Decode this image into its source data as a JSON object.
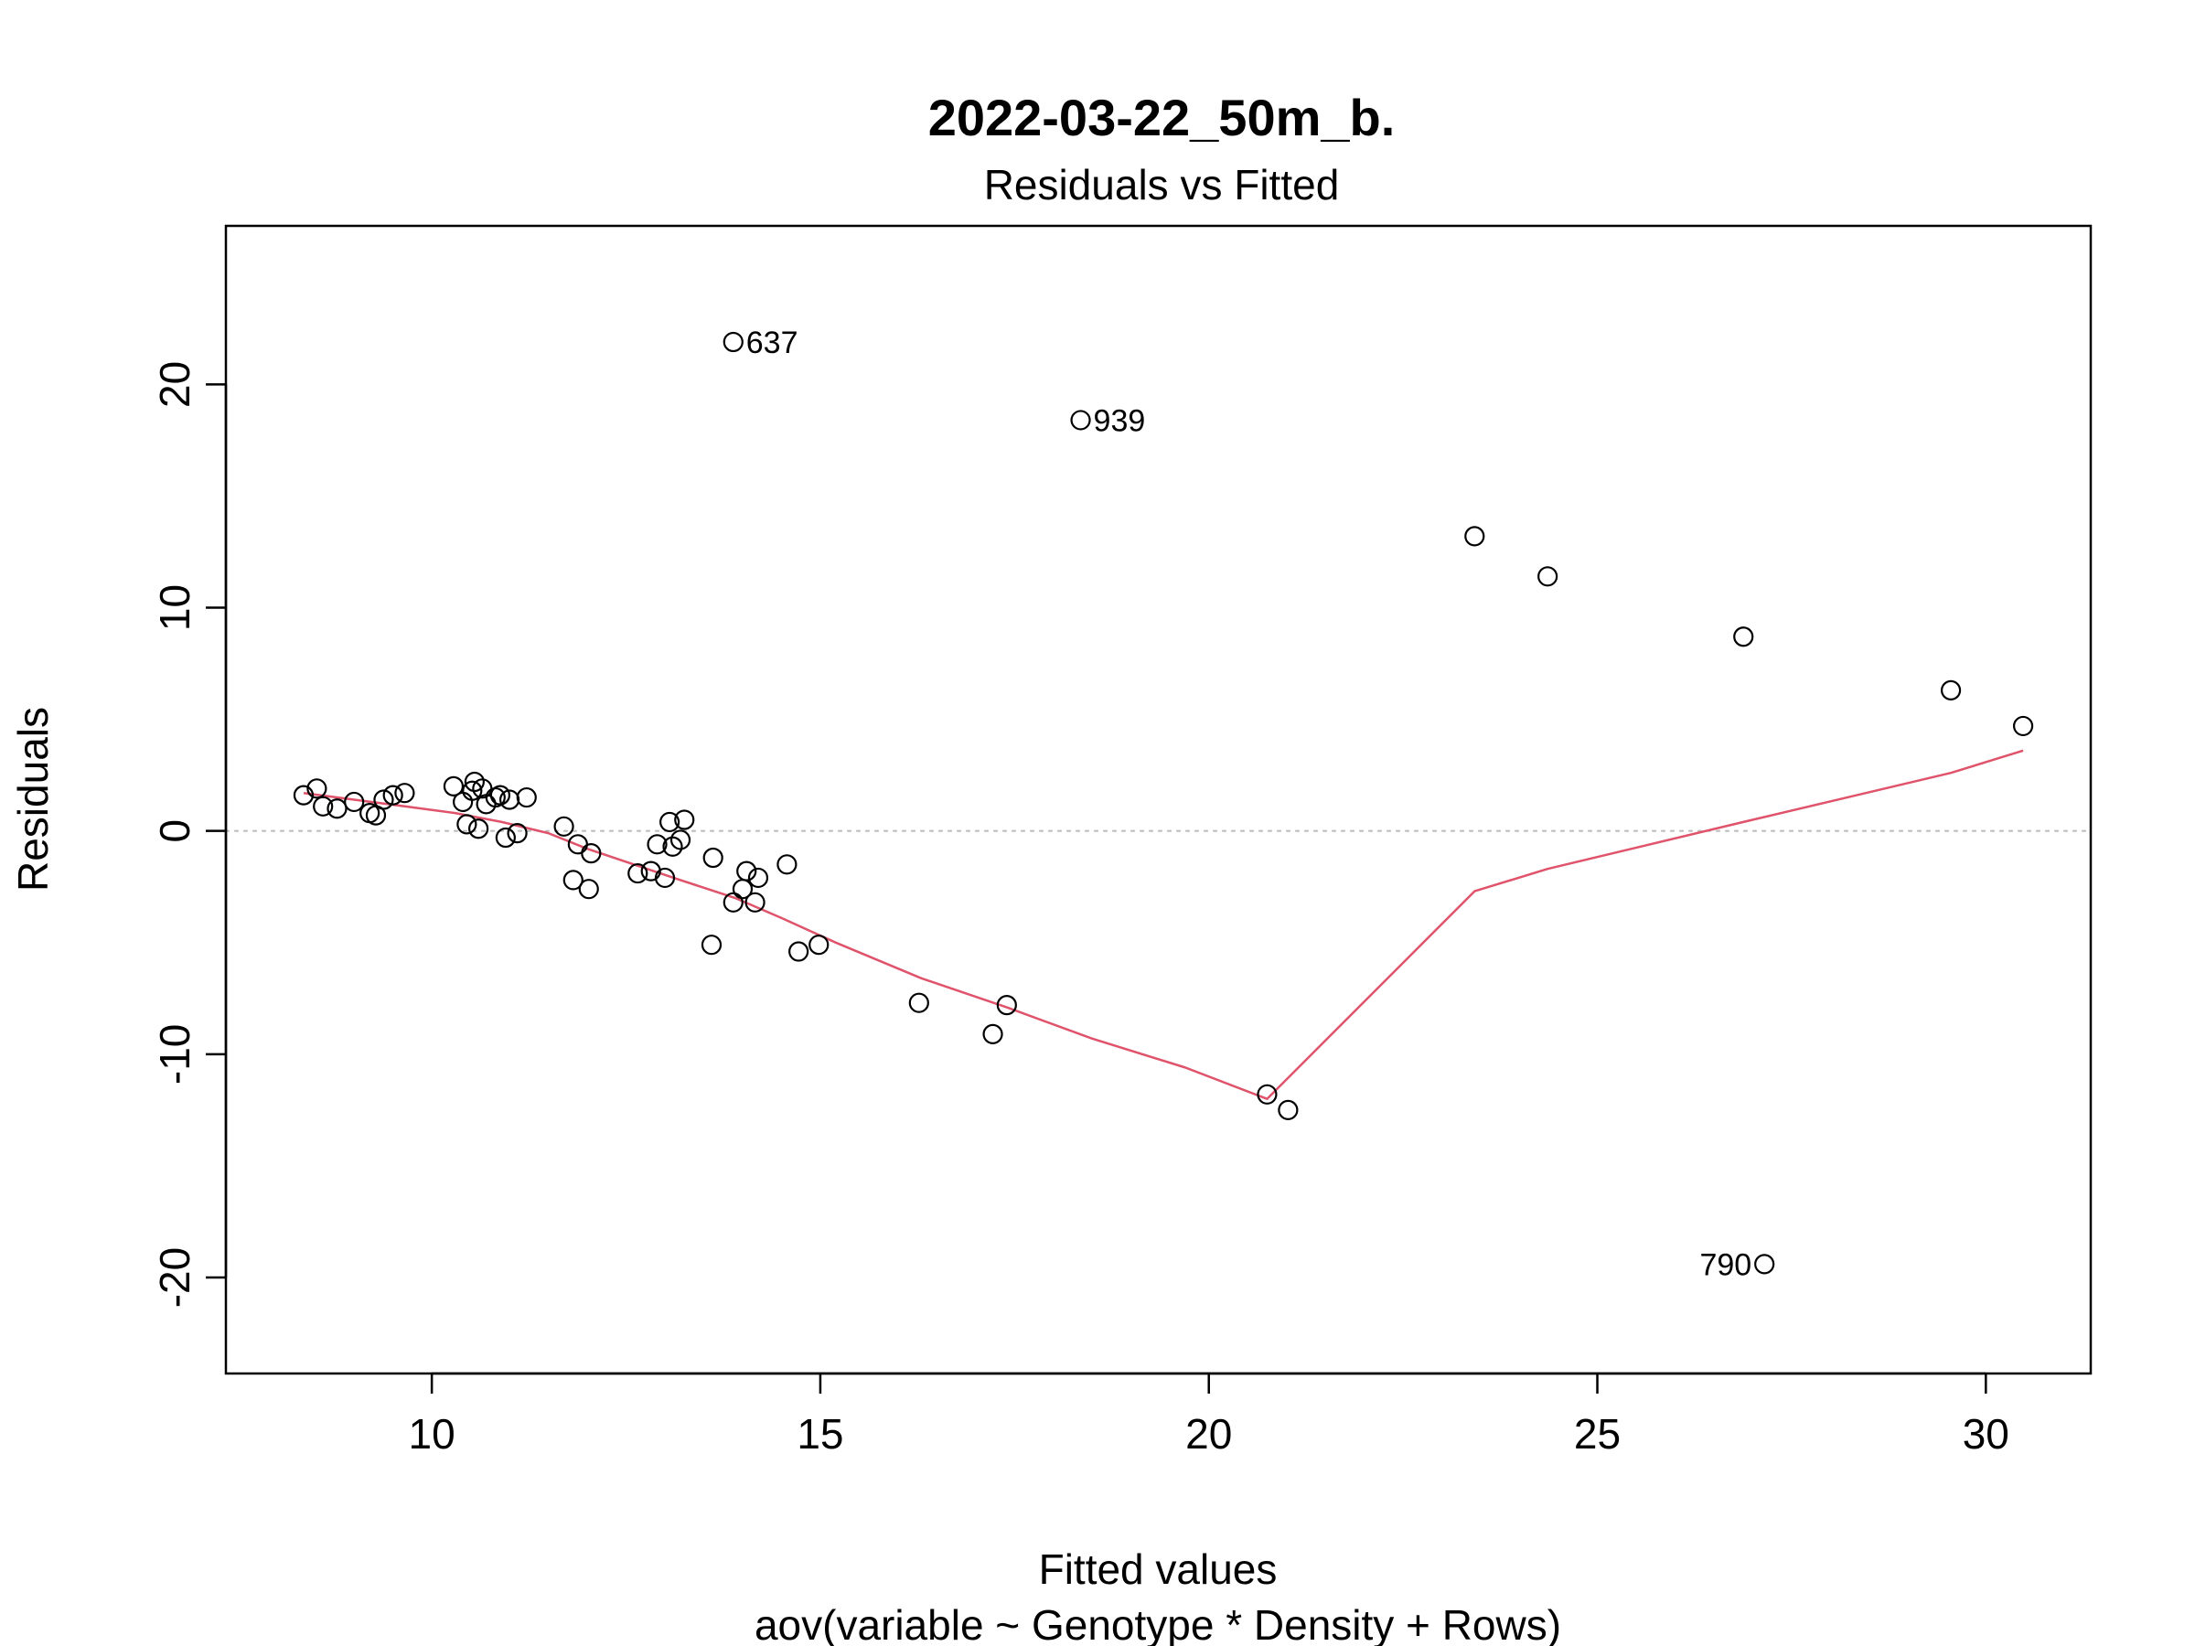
{
  "chart_data": {
    "type": "scatter",
    "title": "2022-03-22_50m_b.",
    "subtitle": "Residuals vs Fitted",
    "xlabel": "Fitted values",
    "xlabel2": "aov(variable ~ Genotype * Density + Rows)",
    "ylabel": "Residuals",
    "xlim": [
      7.35,
      31.35
    ],
    "ylim": [
      -24.3,
      27.1
    ],
    "x_ticks": [
      10,
      15,
      20,
      25,
      30
    ],
    "x_tick_labels": [
      "10",
      "15",
      "20",
      "25",
      "30"
    ],
    "y_ticks": [
      -20,
      -10,
      0,
      10,
      20
    ],
    "y_tick_labels": [
      "-20",
      "-10",
      "0",
      "10",
      "20"
    ],
    "reference_line": {
      "y": 0,
      "color": "#bebebe",
      "style": "dotted"
    },
    "grid": false,
    "points": [
      {
        "x": 8.35,
        "y": 1.6
      },
      {
        "x": 8.52,
        "y": 1.9
      },
      {
        "x": 8.6,
        "y": 1.1
      },
      {
        "x": 8.78,
        "y": 1.0
      },
      {
        "x": 9.0,
        "y": 1.3
      },
      {
        "x": 9.2,
        "y": 0.8
      },
      {
        "x": 9.28,
        "y": 0.7
      },
      {
        "x": 9.38,
        "y": 1.4
      },
      {
        "x": 9.5,
        "y": 1.6
      },
      {
        "x": 9.65,
        "y": 1.7
      },
      {
        "x": 10.28,
        "y": 2.0
      },
      {
        "x": 10.4,
        "y": 1.3
      },
      {
        "x": 10.45,
        "y": 0.3
      },
      {
        "x": 10.52,
        "y": 1.8
      },
      {
        "x": 10.55,
        "y": 2.2
      },
      {
        "x": 10.6,
        "y": 0.1
      },
      {
        "x": 10.65,
        "y": 1.9
      },
      {
        "x": 10.7,
        "y": 1.2
      },
      {
        "x": 10.82,
        "y": 1.5
      },
      {
        "x": 10.88,
        "y": 1.6
      },
      {
        "x": 10.95,
        "y": -0.3
      },
      {
        "x": 11.0,
        "y": 1.4
      },
      {
        "x": 11.1,
        "y": -0.1
      },
      {
        "x": 11.22,
        "y": 1.5
      },
      {
        "x": 11.7,
        "y": 0.2
      },
      {
        "x": 11.82,
        "y": -2.2
      },
      {
        "x": 11.88,
        "y": -0.6
      },
      {
        "x": 12.02,
        "y": -2.6
      },
      {
        "x": 12.05,
        "y": -1.0
      },
      {
        "x": 12.65,
        "y": -1.9
      },
      {
        "x": 12.82,
        "y": -1.8
      },
      {
        "x": 12.9,
        "y": -0.6
      },
      {
        "x": 13.0,
        "y": -2.1
      },
      {
        "x": 13.06,
        "y": 0.4
      },
      {
        "x": 13.1,
        "y": -0.7
      },
      {
        "x": 13.2,
        "y": -0.4
      },
      {
        "x": 13.25,
        "y": 0.5
      },
      {
        "x": 13.6,
        "y": -5.1
      },
      {
        "x": 13.62,
        "y": -1.2
      },
      {
        "x": 13.88,
        "y": -3.2
      },
      {
        "x": 14.0,
        "y": -2.6
      },
      {
        "x": 14.05,
        "y": -1.8
      },
      {
        "x": 14.16,
        "y": -3.2
      },
      {
        "x": 14.2,
        "y": -2.1
      },
      {
        "x": 14.57,
        "y": -1.5
      },
      {
        "x": 14.72,
        "y": -5.4
      },
      {
        "x": 14.98,
        "y": -5.1
      },
      {
        "x": 16.27,
        "y": -7.7
      },
      {
        "x": 17.22,
        "y": -9.1
      },
      {
        "x": 17.4,
        "y": -7.8
      },
      {
        "x": 13.88,
        "y": 21.9,
        "label": "637"
      },
      {
        "x": 18.35,
        "y": 18.4,
        "label": "939"
      },
      {
        "x": 20.75,
        "y": -11.8
      },
      {
        "x": 21.02,
        "y": -12.5
      },
      {
        "x": 23.42,
        "y": 13.2
      },
      {
        "x": 24.36,
        "y": 11.4
      },
      {
        "x": 26.88,
        "y": 8.7
      },
      {
        "x": 27.15,
        "y": -19.4,
        "label": "790"
      },
      {
        "x": 29.55,
        "y": 6.3
      },
      {
        "x": 30.48,
        "y": 4.7
      }
    ],
    "smooth_line": {
      "color": "#df536b",
      "x": [
        8.35,
        9.0,
        9.65,
        10.3,
        10.9,
        11.5,
        12.0,
        12.6,
        13.2,
        13.9,
        14.5,
        15.2,
        16.3,
        17.4,
        18.5,
        19.7,
        20.75,
        23.42,
        24.36,
        26.88,
        29.55,
        30.48
      ],
      "y": [
        1.7,
        1.4,
        1.1,
        0.8,
        0.4,
        -0.1,
        -0.8,
        -1.5,
        -2.2,
        -3.0,
        -3.9,
        -5.0,
        -6.6,
        -7.9,
        -9.3,
        -10.6,
        -12.0,
        -2.7,
        -1.7,
        0.4,
        2.6,
        3.6
      ]
    }
  }
}
